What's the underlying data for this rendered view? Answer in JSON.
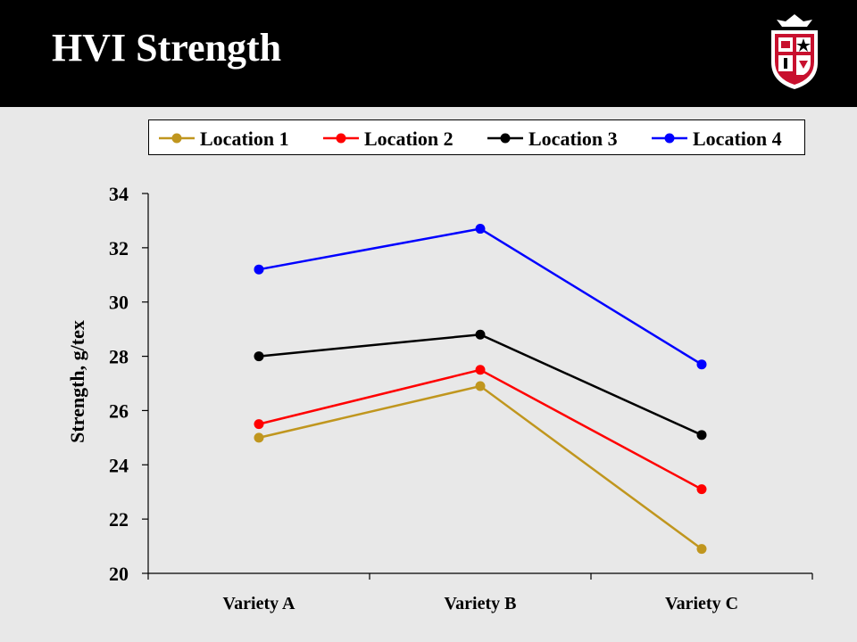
{
  "slide": {
    "title": "HVI Strength",
    "logo_icon": "university-shield-logo"
  },
  "chart_data": {
    "type": "line",
    "title": "",
    "xlabel": "",
    "ylabel": "Strength, g/tex",
    "ylim": [
      20,
      34
    ],
    "ytick_step": 2,
    "yticks": [
      "20",
      "22",
      "24",
      "26",
      "28",
      "30",
      "32",
      "34"
    ],
    "categories": [
      "Variety A",
      "Variety B",
      "Variety C"
    ],
    "grid": false,
    "legend_position": "top",
    "series": [
      {
        "name": "Location 1",
        "color": "#c0961e",
        "values": [
          25.0,
          26.9,
          20.9
        ]
      },
      {
        "name": "Location 2",
        "color": "#ff0000",
        "values": [
          25.5,
          27.5,
          23.1
        ]
      },
      {
        "name": "Location 3",
        "color": "#000000",
        "values": [
          28.0,
          28.8,
          25.1
        ]
      },
      {
        "name": "Location 4",
        "color": "#0000ff",
        "values": [
          31.2,
          32.7,
          27.7
        ]
      }
    ]
  }
}
